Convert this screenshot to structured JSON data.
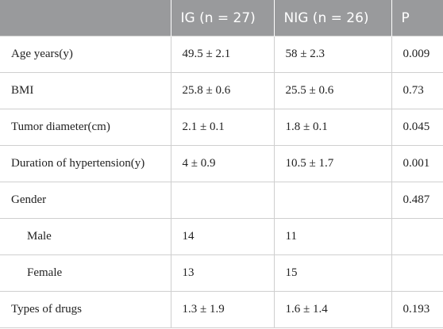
{
  "table": {
    "header": [
      "IG (n = 27)",
      "NIG (n = 26)",
      "P"
    ],
    "rows": [
      {
        "label": "Age years(y)",
        "ig": "49.5 ± 2.1",
        "nig": "58 ± 2.3",
        "p": "0.009"
      },
      {
        "label": "BMI",
        "ig": "25.8 ± 0.6",
        "nig": "25.5 ± 0.6",
        "p": "0.73"
      },
      {
        "label": "Tumor diameter(cm)",
        "ig": "2.1 ± 0.1",
        "nig": "1.8 ± 0.1",
        "p": "0.045"
      },
      {
        "label": "Duration of hypertension(y)",
        "ig": "4 ± 0.9",
        "nig": "10.5 ± 1.7",
        "p": "0.001"
      },
      {
        "label": "Gender",
        "p": "0.487"
      },
      {
        "label": "Male",
        "ig": "14",
        "nig": "11",
        "indent": true
      },
      {
        "label": "Female",
        "ig": "13",
        "nig": "15",
        "indent": true
      },
      {
        "label": "Types of drugs",
        "ig": "1.3 ± 1.9",
        "nig": "1.6 ± 1.4",
        "p": "0.193"
      }
    ]
  }
}
